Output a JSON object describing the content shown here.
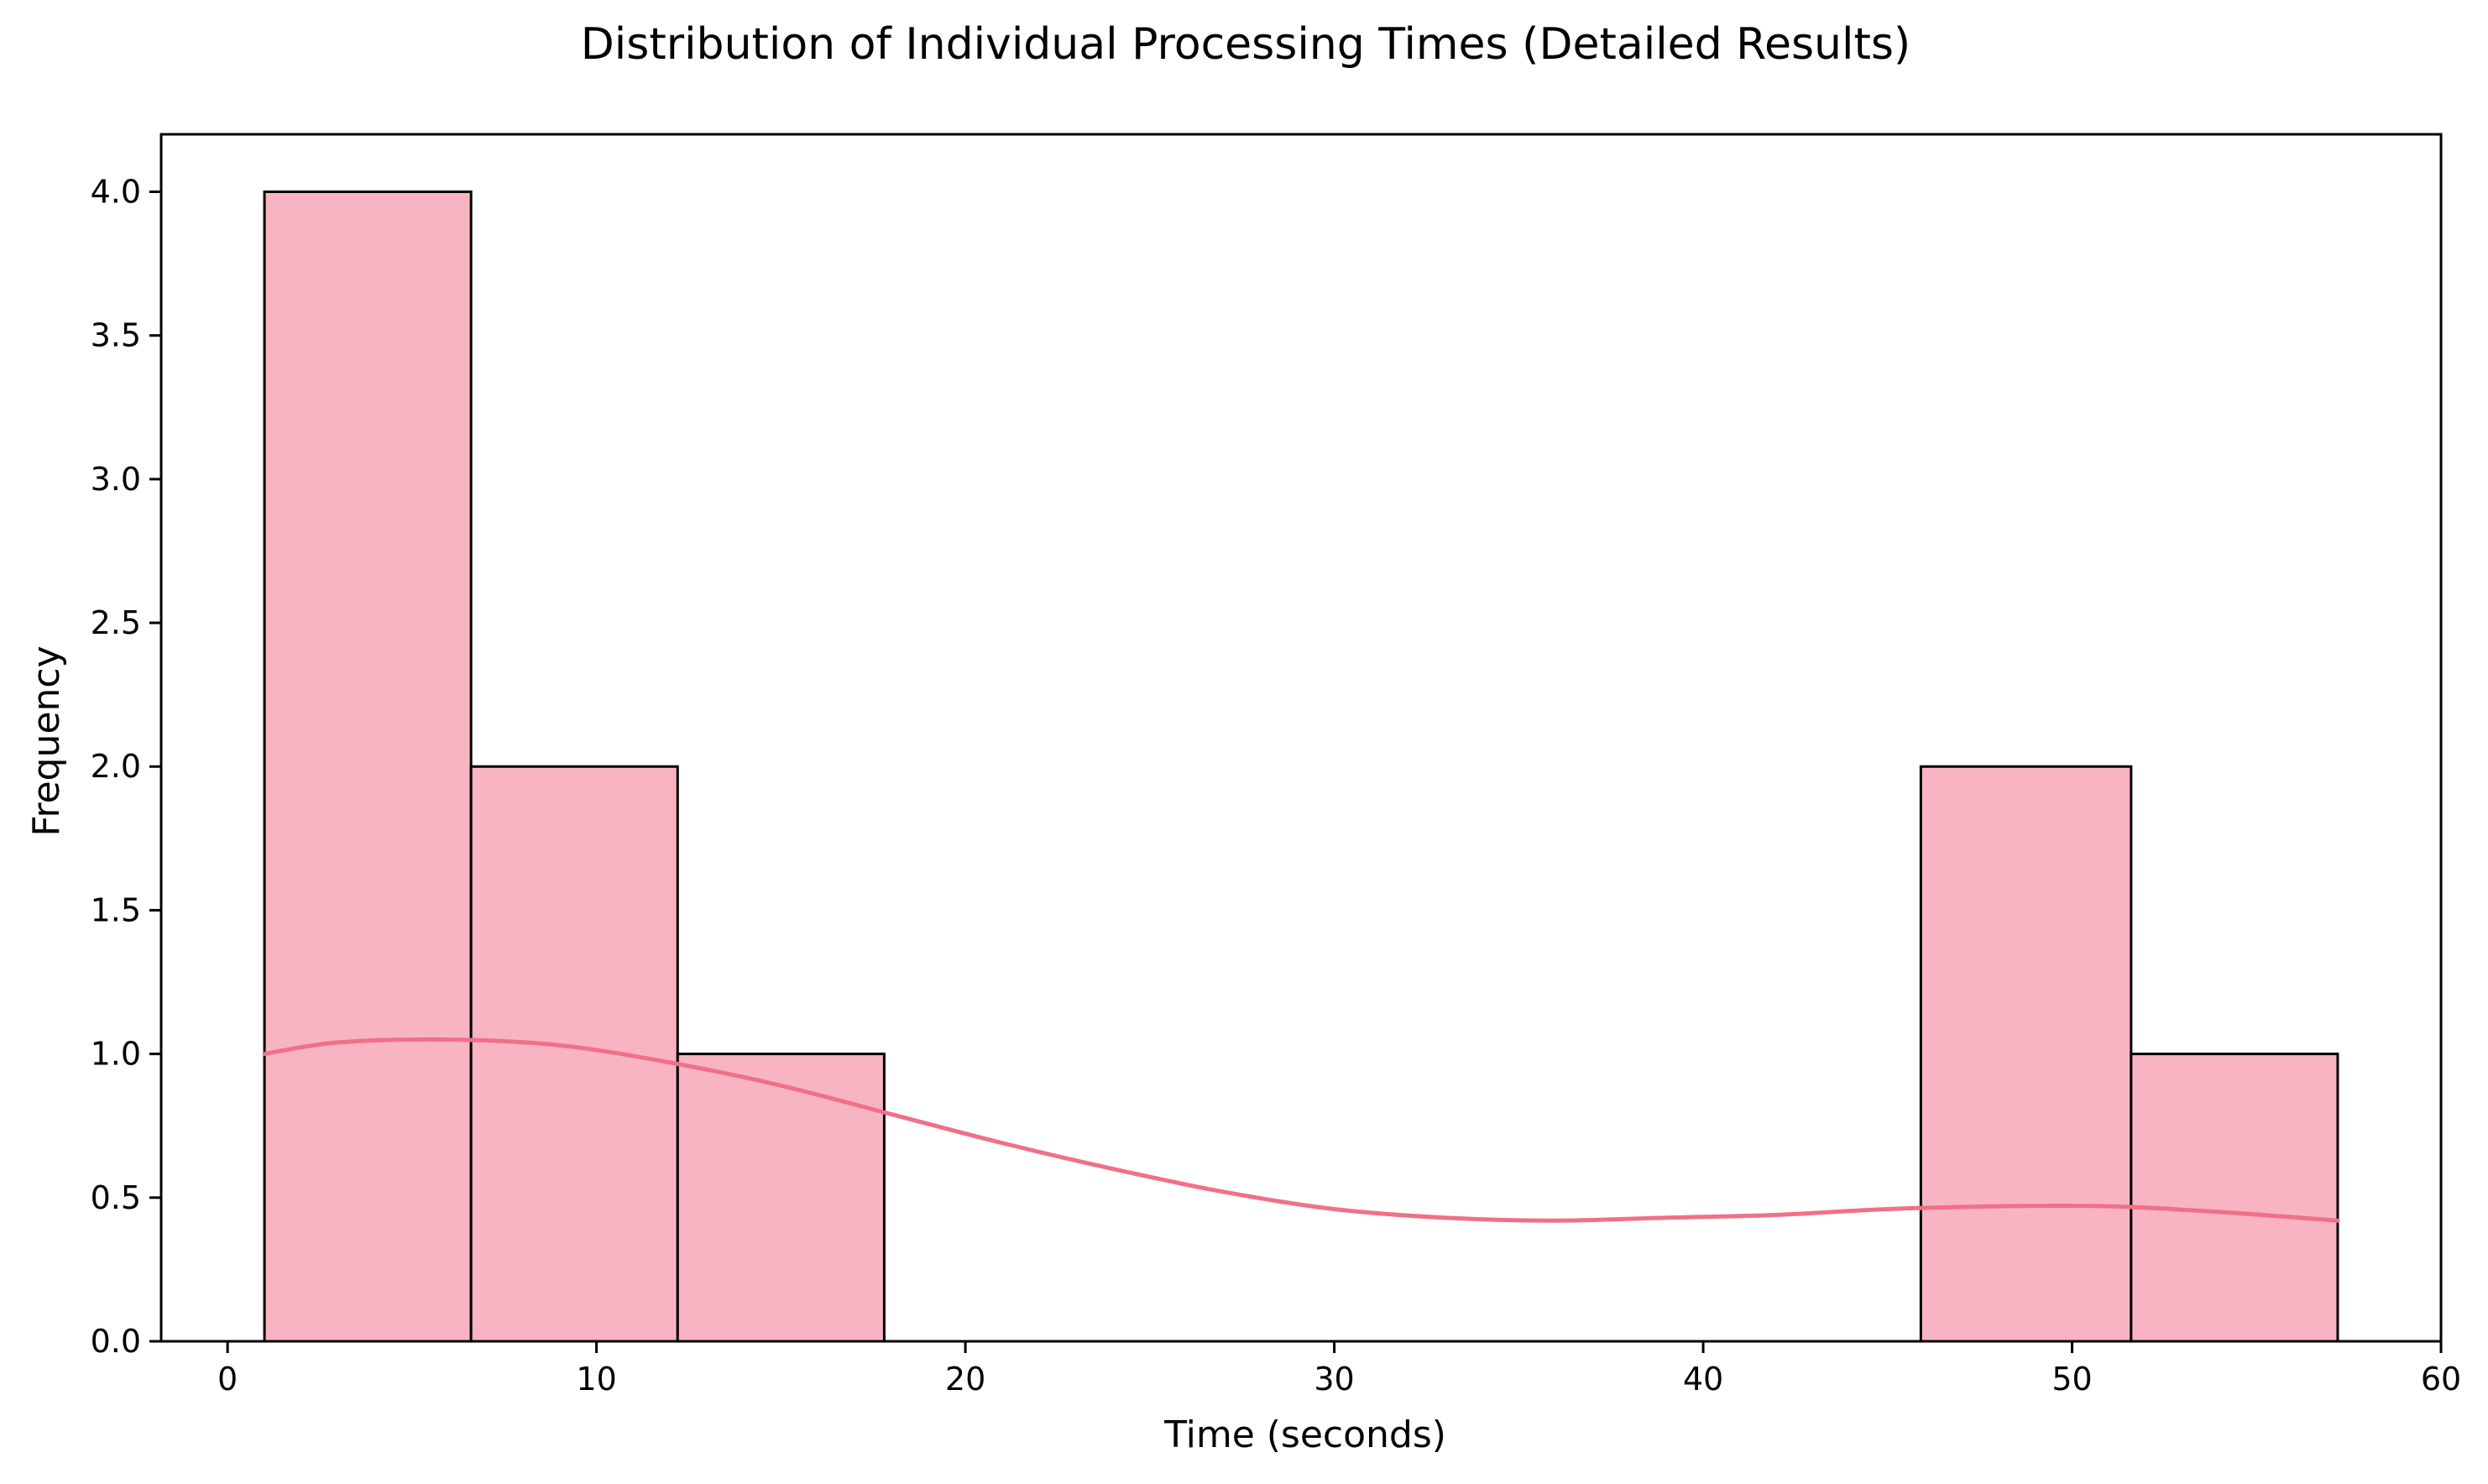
{
  "chart_data": {
    "type": "bar",
    "subtype": "histogram",
    "title": "Distribution of Individual Processing Times (Detailed Results)",
    "xlabel": "Time (seconds)",
    "ylabel": "Frequency",
    "xlim": [
      -1.8,
      60
    ],
    "ylim": [
      0,
      4.2
    ],
    "xticks": [
      0,
      10,
      20,
      30,
      40,
      50,
      60
    ],
    "yticks": [
      0.0,
      0.5,
      1.0,
      1.5,
      2.0,
      2.5,
      3.0,
      3.5,
      4.0
    ],
    "xtick_labels": [
      "0",
      "10",
      "20",
      "30",
      "40",
      "50",
      "60"
    ],
    "ytick_labels": [
      "0.0",
      "0.5",
      "1.0",
      "1.5",
      "2.0",
      "2.5",
      "3.0",
      "3.5",
      "4.0"
    ],
    "bins": [
      {
        "start": 1.0,
        "end": 6.6,
        "count": 4
      },
      {
        "start": 6.6,
        "end": 12.2,
        "count": 2
      },
      {
        "start": 12.2,
        "end": 17.8,
        "count": 1
      },
      {
        "start": 17.8,
        "end": 23.4,
        "count": 0
      },
      {
        "start": 23.4,
        "end": 29.0,
        "count": 0
      },
      {
        "start": 29.0,
        "end": 34.6,
        "count": 0
      },
      {
        "start": 34.6,
        "end": 40.3,
        "count": 0
      },
      {
        "start": 40.3,
        "end": 45.9,
        "count": 0
      },
      {
        "start": 45.9,
        "end": 51.6,
        "count": 2
      },
      {
        "start": 51.6,
        "end": 57.2,
        "count": 1
      }
    ],
    "kde": {
      "x": [
        1.0,
        3.0,
        6.0,
        9.0,
        12.0,
        15.0,
        18.0,
        21.0,
        24.0,
        27.0,
        30.0,
        33.0,
        36.0,
        39.0,
        42.0,
        45.0,
        48.0,
        51.0,
        54.0,
        57.2
      ],
      "y": [
        1.0,
        1.04,
        1.05,
        1.03,
        0.97,
        0.89,
        0.79,
        0.69,
        0.6,
        0.52,
        0.46,
        0.43,
        0.42,
        0.43,
        0.44,
        0.46,
        0.47,
        0.47,
        0.45,
        0.42
      ]
    },
    "grid": false,
    "legend": "none",
    "colors": {
      "bar_fill": "#f9b4c3",
      "bar_edge": "#000000",
      "kde_line": "#f07089"
    }
  }
}
